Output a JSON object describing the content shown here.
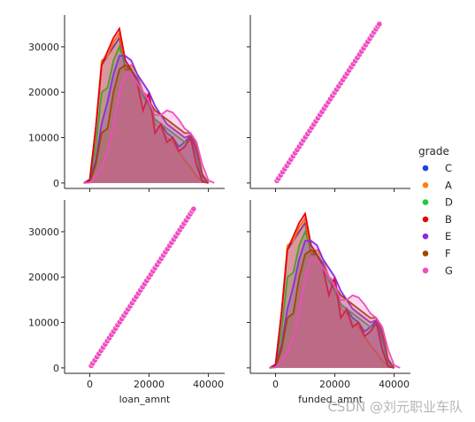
{
  "chart_data": {
    "type": "pairplot",
    "variables": [
      "loan_amnt",
      "funded_amnt"
    ],
    "axis_labels": {
      "x": [
        "loan_amnt",
        "funded_amnt"
      ],
      "y": [
        "",
        ""
      ]
    },
    "x_ticks": [
      0,
      20000,
      40000
    ],
    "x_tick_labels": [
      "0",
      "20000",
      "40000"
    ],
    "x_range": [
      -8500,
      45500
    ],
    "kde_range": [
      0,
      36000
    ],
    "y_ticks": [
      0,
      10000,
      20000,
      30000
    ],
    "y_tick_labels": [
      "0",
      "10000",
      "20000",
      "30000"
    ],
    "y_range": [
      -1200,
      37000
    ],
    "legend": {
      "title": "grade",
      "placement": "right",
      "entries": [
        {
          "name": "C",
          "color": "#1f3fe8"
        },
        {
          "name": "A",
          "color": "#ff7f0e"
        },
        {
          "name": "D",
          "color": "#1ec940"
        },
        {
          "name": "B",
          "color": "#e8000b"
        },
        {
          "name": "E",
          "color": "#8b2be2"
        },
        {
          "name": "F",
          "color": "#9f4800"
        },
        {
          "name": "G",
          "color": "#f14cc1"
        }
      ]
    },
    "kde_series": [
      {
        "name": "C",
        "color": "#1f3fe8",
        "points": [
          [
            -2000,
            0
          ],
          [
            0,
            800
          ],
          [
            2000,
            12000
          ],
          [
            4000,
            26000
          ],
          [
            6000,
            28000
          ],
          [
            8000,
            30000
          ],
          [
            10000,
            32000
          ],
          [
            12000,
            25000
          ],
          [
            14000,
            25000
          ],
          [
            16000,
            23000
          ],
          [
            18000,
            20000
          ],
          [
            20000,
            17000
          ],
          [
            22000,
            14000
          ],
          [
            24000,
            13000
          ],
          [
            26000,
            11000
          ],
          [
            28000,
            10000
          ],
          [
            30000,
            8000
          ],
          [
            32000,
            9000
          ],
          [
            34000,
            10500
          ],
          [
            36000,
            6000
          ],
          [
            38000,
            400
          ],
          [
            40000,
            0
          ]
        ]
      },
      {
        "name": "A",
        "color": "#ff7f0e",
        "points": [
          [
            -2000,
            0
          ],
          [
            0,
            500
          ],
          [
            2000,
            12000
          ],
          [
            4000,
            27000
          ],
          [
            6000,
            28000
          ],
          [
            8000,
            31000
          ],
          [
            10000,
            33000
          ],
          [
            12000,
            25000
          ],
          [
            14000,
            26000
          ],
          [
            16000,
            24000
          ],
          [
            18000,
            20000
          ],
          [
            20000,
            19000
          ],
          [
            22000,
            13000
          ],
          [
            24000,
            12000
          ],
          [
            26000,
            10000
          ],
          [
            28000,
            9000
          ],
          [
            30000,
            7000
          ],
          [
            32000,
            5000
          ],
          [
            34000,
            3500
          ],
          [
            36000,
            1500
          ],
          [
            38000,
            300
          ],
          [
            40000,
            0
          ]
        ]
      },
      {
        "name": "D",
        "color": "#1ec940",
        "points": [
          [
            -2000,
            0
          ],
          [
            0,
            300
          ],
          [
            2000,
            8000
          ],
          [
            4000,
            20000
          ],
          [
            6000,
            21000
          ],
          [
            8000,
            27000
          ],
          [
            10000,
            30000
          ],
          [
            12000,
            26000
          ],
          [
            14000,
            25000
          ],
          [
            16000,
            22000
          ],
          [
            18000,
            19000
          ],
          [
            20000,
            17000
          ],
          [
            22000,
            14000
          ],
          [
            24000,
            13000
          ],
          [
            26000,
            12000
          ],
          [
            28000,
            11000
          ],
          [
            30000,
            10000
          ],
          [
            32000,
            9000
          ],
          [
            34000,
            9500
          ],
          [
            36000,
            6000
          ],
          [
            38000,
            800
          ],
          [
            40000,
            0
          ]
        ]
      },
      {
        "name": "B",
        "color": "#e8000b",
        "points": [
          [
            -2000,
            0
          ],
          [
            0,
            600
          ],
          [
            2000,
            12000
          ],
          [
            4000,
            26000
          ],
          [
            6000,
            29000
          ],
          [
            8000,
            32000
          ],
          [
            10000,
            34000
          ],
          [
            12000,
            27000
          ],
          [
            14000,
            25000
          ],
          [
            16000,
            22000
          ],
          [
            18000,
            16000
          ],
          [
            20000,
            20000
          ],
          [
            22000,
            11000
          ],
          [
            24000,
            13000
          ],
          [
            26000,
            9000
          ],
          [
            28000,
            10000
          ],
          [
            30000,
            7000
          ],
          [
            32000,
            8000
          ],
          [
            34000,
            10000
          ],
          [
            36000,
            4000
          ],
          [
            38000,
            300
          ],
          [
            40000,
            0
          ]
        ]
      },
      {
        "name": "E",
        "color": "#8b2be2",
        "points": [
          [
            -2000,
            0
          ],
          [
            0,
            200
          ],
          [
            2000,
            5000
          ],
          [
            4000,
            13000
          ],
          [
            6000,
            18000
          ],
          [
            8000,
            24000
          ],
          [
            10000,
            28000
          ],
          [
            12000,
            28000
          ],
          [
            14000,
            27000
          ],
          [
            16000,
            24000
          ],
          [
            18000,
            22000
          ],
          [
            20000,
            20000
          ],
          [
            22000,
            17000
          ],
          [
            24000,
            15000
          ],
          [
            26000,
            13000
          ],
          [
            28000,
            12000
          ],
          [
            30000,
            11000
          ],
          [
            32000,
            10000
          ],
          [
            34000,
            10500
          ],
          [
            36000,
            7000
          ],
          [
            38000,
            1500
          ],
          [
            40000,
            0
          ]
        ]
      },
      {
        "name": "F",
        "color": "#9f4800",
        "points": [
          [
            -2000,
            0
          ],
          [
            0,
            150
          ],
          [
            2000,
            4000
          ],
          [
            4000,
            11000
          ],
          [
            6000,
            12000
          ],
          [
            8000,
            20000
          ],
          [
            10000,
            25000
          ],
          [
            12000,
            26000
          ],
          [
            14000,
            25000
          ],
          [
            16000,
            22000
          ],
          [
            18000,
            20000
          ],
          [
            20000,
            18000
          ],
          [
            22000,
            16000
          ],
          [
            24000,
            15000
          ],
          [
            26000,
            14000
          ],
          [
            28000,
            13000
          ],
          [
            30000,
            12000
          ],
          [
            32000,
            11000
          ],
          [
            34000,
            11000
          ],
          [
            36000,
            8000
          ],
          [
            38000,
            2000
          ],
          [
            40000,
            0
          ]
        ]
      },
      {
        "name": "G",
        "color": "#f14cc1",
        "points": [
          [
            -2000,
            0
          ],
          [
            0,
            100
          ],
          [
            2000,
            1500
          ],
          [
            4000,
            3500
          ],
          [
            6000,
            7000
          ],
          [
            8000,
            13000
          ],
          [
            10000,
            20000
          ],
          [
            12000,
            24000
          ],
          [
            14000,
            24000
          ],
          [
            16000,
            22000
          ],
          [
            18000,
            20000
          ],
          [
            20000,
            18000
          ],
          [
            22000,
            15000
          ],
          [
            24000,
            15000
          ],
          [
            26000,
            16000
          ],
          [
            28000,
            15500
          ],
          [
            30000,
            14000
          ],
          [
            32000,
            12000
          ],
          [
            34000,
            11000
          ],
          [
            36000,
            9000
          ],
          [
            38000,
            4000
          ],
          [
            40000,
            600
          ],
          [
            42000,
            0
          ]
        ]
      }
    ],
    "scatter": {
      "color": "#f14cc1",
      "points": [
        [
          500,
          500
        ],
        [
          1000,
          1000
        ],
        [
          1700,
          1700
        ],
        [
          2400,
          2400
        ],
        [
          3100,
          3100
        ],
        [
          3800,
          3800
        ],
        [
          4500,
          4500
        ],
        [
          5200,
          5200
        ],
        [
          5900,
          5900
        ],
        [
          6600,
          6600
        ],
        [
          7300,
          7300
        ],
        [
          8000,
          8000
        ],
        [
          8700,
          8700
        ],
        [
          9400,
          9400
        ],
        [
          10100,
          10100
        ],
        [
          10800,
          10800
        ],
        [
          11500,
          11500
        ],
        [
          12200,
          12200
        ],
        [
          12900,
          12900
        ],
        [
          13600,
          13600
        ],
        [
          14300,
          14300
        ],
        [
          15000,
          15000
        ],
        [
          15700,
          15700
        ],
        [
          16400,
          16400
        ],
        [
          17100,
          17100
        ],
        [
          17800,
          17800
        ],
        [
          18500,
          18500
        ],
        [
          19200,
          19200
        ],
        [
          19900,
          19900
        ],
        [
          20600,
          20600
        ],
        [
          21300,
          21300
        ],
        [
          22000,
          22000
        ],
        [
          22700,
          22700
        ],
        [
          23400,
          23400
        ],
        [
          24100,
          24100
        ],
        [
          24800,
          24800
        ],
        [
          25500,
          25500
        ],
        [
          26200,
          26200
        ],
        [
          26900,
          26900
        ],
        [
          27600,
          27600
        ],
        [
          28300,
          28300
        ],
        [
          29000,
          29000
        ],
        [
          29700,
          29700
        ],
        [
          30400,
          30400
        ],
        [
          31100,
          31100
        ],
        [
          31800,
          31800
        ],
        [
          32500,
          32500
        ],
        [
          33200,
          33200
        ],
        [
          33900,
          33900
        ],
        [
          34500,
          34500
        ],
        [
          35000,
          35000
        ]
      ]
    }
  },
  "watermark": "CSDN @刘元职业车队"
}
